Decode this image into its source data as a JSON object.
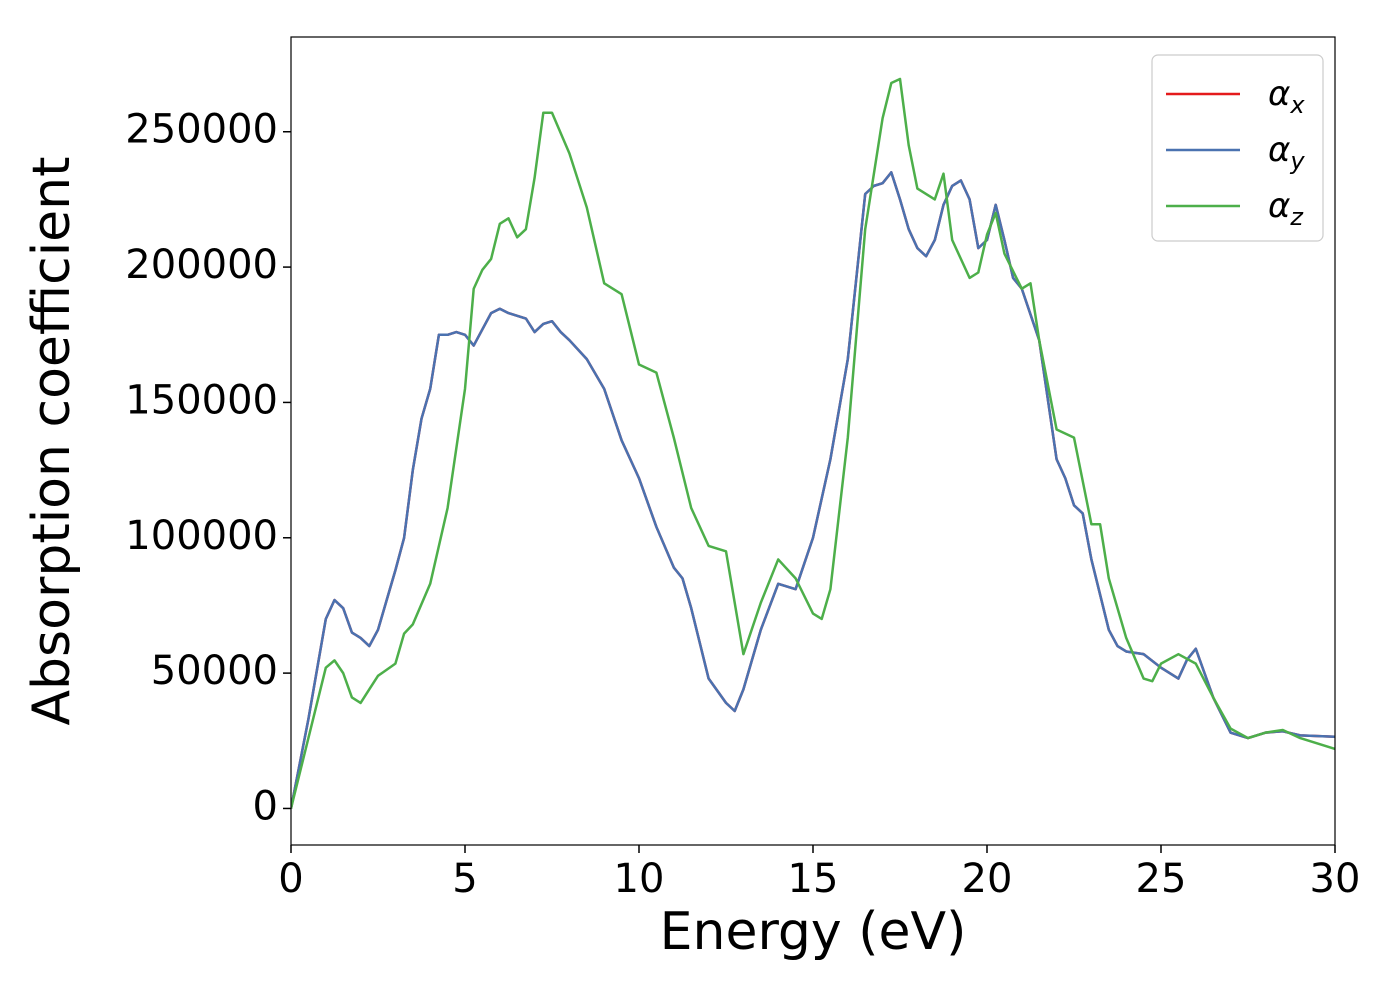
{
  "chart_data": {
    "type": "line",
    "xlabel": "Energy (eV)",
    "ylabel": "Absorption coefficient",
    "xlim": [
      0,
      30
    ],
    "xticks": [
      0,
      5,
      10,
      15,
      20,
      25,
      30
    ],
    "ylim": [
      -13500,
      285000
    ],
    "yticks": [
      0,
      50000,
      100000,
      150000,
      200000,
      250000
    ],
    "legend": "upper right",
    "grid": false,
    "series": [
      {
        "name": "αx",
        "color": "#e41a1c",
        "x": [
          0,
          0.5,
          1,
          1.25,
          1.5,
          1.75,
          2,
          2.25,
          2.5,
          2.75,
          3,
          3.25,
          3.5,
          3.75,
          4,
          4.25,
          4.5,
          4.75,
          5,
          5.25,
          5.5,
          5.75,
          6,
          6.25,
          6.5,
          6.75,
          7,
          7.25,
          7.5,
          7.75,
          8,
          8.5,
          9,
          9.5,
          10,
          10.5,
          11,
          11.25,
          11.5,
          12,
          12.5,
          12.75,
          13,
          13.5,
          14,
          14.5,
          15,
          15.5,
          16,
          16.5,
          16.75,
          17,
          17.25,
          17.5,
          17.75,
          18,
          18.25,
          18.5,
          18.75,
          19,
          19.25,
          19.5,
          19.75,
          20,
          20.25,
          20.5,
          20.75,
          21,
          21.5,
          22,
          22.25,
          22.5,
          22.75,
          23,
          23.5,
          23.75,
          24,
          24.5,
          25,
          25.5,
          25.75,
          26,
          26.5,
          27,
          27.5,
          28,
          28.5,
          29,
          30
        ],
        "values": [
          0,
          33000,
          70000,
          77000,
          74000,
          65000,
          63000,
          60000,
          66000,
          77000,
          88000,
          100000,
          125000,
          144000,
          155000,
          175000,
          175000,
          176000,
          175000,
          171000,
          177000,
          183000,
          184600,
          183000,
          182000,
          181000,
          176000,
          179000,
          180000,
          176000,
          173000,
          166000,
          155000,
          136000,
          122000,
          104000,
          89000,
          85000,
          74000,
          48000,
          39000,
          36000,
          44000,
          66000,
          83000,
          81000,
          100000,
          129000,
          166000,
          227000,
          230000,
          231000,
          235000,
          225000,
          214000,
          207000,
          204000,
          210000,
          223000,
          230000,
          232000,
          225000,
          207000,
          210000,
          223000,
          210000,
          196000,
          192000,
          173000,
          129000,
          122000,
          112000,
          109000,
          92000,
          66000,
          60000,
          58000,
          57000,
          52000,
          48000,
          55000,
          59000,
          41000,
          28000,
          26000,
          28000,
          28500,
          27000,
          26500
        ]
      },
      {
        "name": "αy",
        "color": "#4a72b0",
        "x": [
          0,
          0.5,
          1,
          1.25,
          1.5,
          1.75,
          2,
          2.25,
          2.5,
          2.75,
          3,
          3.25,
          3.5,
          3.75,
          4,
          4.25,
          4.5,
          4.75,
          5,
          5.25,
          5.5,
          5.75,
          6,
          6.25,
          6.5,
          6.75,
          7,
          7.25,
          7.5,
          7.75,
          8,
          8.5,
          9,
          9.5,
          10,
          10.5,
          11,
          11.25,
          11.5,
          12,
          12.5,
          12.75,
          13,
          13.5,
          14,
          14.5,
          15,
          15.5,
          16,
          16.5,
          16.75,
          17,
          17.25,
          17.5,
          17.75,
          18,
          18.25,
          18.5,
          18.75,
          19,
          19.25,
          19.5,
          19.75,
          20,
          20.25,
          20.5,
          20.75,
          21,
          21.5,
          22,
          22.25,
          22.5,
          22.75,
          23,
          23.5,
          23.75,
          24,
          24.5,
          25,
          25.5,
          25.75,
          26,
          26.5,
          27,
          27.5,
          28,
          28.5,
          29,
          30
        ],
        "values": [
          0,
          33000,
          70000,
          77000,
          74000,
          65000,
          63000,
          60000,
          66000,
          77000,
          88000,
          100000,
          125000,
          144000,
          155000,
          175000,
          175000,
          176000,
          175000,
          171000,
          177000,
          183000,
          184600,
          183000,
          182000,
          181000,
          176000,
          179000,
          180000,
          176000,
          173000,
          166000,
          155000,
          136000,
          122000,
          104000,
          89000,
          85000,
          74000,
          48000,
          39000,
          36000,
          44000,
          66000,
          83000,
          81000,
          100000,
          129000,
          166000,
          227000,
          230000,
          231000,
          235000,
          225000,
          214000,
          207000,
          204000,
          210000,
          223000,
          230000,
          232000,
          225000,
          207000,
          210000,
          223000,
          210000,
          196000,
          192000,
          173000,
          129000,
          122000,
          112000,
          109000,
          92000,
          66000,
          60000,
          58000,
          57000,
          52000,
          48000,
          55000,
          59000,
          41000,
          28000,
          26000,
          28000,
          28500,
          27000,
          26500
        ]
      },
      {
        "name": "αz",
        "color": "#4daf4a",
        "x": [
          0,
          0.5,
          1,
          1.25,
          1.5,
          1.75,
          2,
          2.25,
          2.5,
          3,
          3.25,
          3.5,
          4,
          4.5,
          5,
          5.25,
          5.5,
          5.75,
          6,
          6.25,
          6.5,
          6.75,
          7,
          7.25,
          7.5,
          8,
          8.5,
          9,
          9.5,
          10,
          10.5,
          11,
          11.5,
          12,
          12.5,
          13,
          13.5,
          14,
          14.5,
          15,
          15.25,
          15.5,
          16,
          16.5,
          17,
          17.25,
          17.5,
          17.75,
          18,
          18.5,
          18.75,
          19,
          19.5,
          19.75,
          20,
          20.25,
          20.5,
          21,
          21.25,
          21.5,
          22,
          22.5,
          23,
          23.25,
          23.5,
          24,
          24.5,
          24.75,
          25,
          25.5,
          26,
          26.5,
          27,
          27.5,
          28,
          28.5,
          29,
          30
        ],
        "values": [
          0,
          26000,
          52000,
          54700,
          50000,
          41000,
          39000,
          44000,
          49000,
          53500,
          64600,
          68000,
          83000,
          111000,
          155000,
          192000,
          199000,
          203000,
          216000,
          218000,
          211000,
          214000,
          233000,
          257000,
          257000,
          242000,
          222000,
          194000,
          190000,
          164000,
          161000,
          137000,
          111000,
          97000,
          95000,
          57000,
          76000,
          92000,
          85000,
          72000,
          70000,
          81000,
          137000,
          214000,
          255000,
          268000,
          269500,
          245000,
          229000,
          225000,
          234500,
          210000,
          196000,
          198000,
          212000,
          220000,
          205000,
          192000,
          194000,
          173000,
          140000,
          137000,
          105000,
          105000,
          85000,
          63000,
          48000,
          47000,
          53500,
          57000,
          53500,
          41000,
          29500,
          26000,
          28000,
          29000,
          26000,
          22000
        ]
      }
    ]
  }
}
